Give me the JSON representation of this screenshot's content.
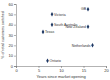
{
  "chart_data": {
    "type": "scatter",
    "x_label": "Years since market opening",
    "y_label": "% of retail customers switched",
    "x": [
      8,
      8,
      6,
      16,
      16,
      17,
      7
    ],
    "values": [
      50,
      40,
      33,
      55,
      38,
      20,
      5
    ],
    "point_labels": [
      "Victoria",
      "South Australia",
      "Texas",
      "GB",
      "New Zealand",
      "Netherlands",
      "Ontario"
    ],
    "color": "#1f3864",
    "marker": "diamond",
    "xlim": [
      0,
      20
    ],
    "xticks": [
      0,
      5,
      10,
      15,
      20
    ],
    "ylim": [
      0,
      60
    ],
    "yticks": [
      0,
      10,
      20,
      30,
      40,
      50,
      60
    ],
    "grid": false
  }
}
